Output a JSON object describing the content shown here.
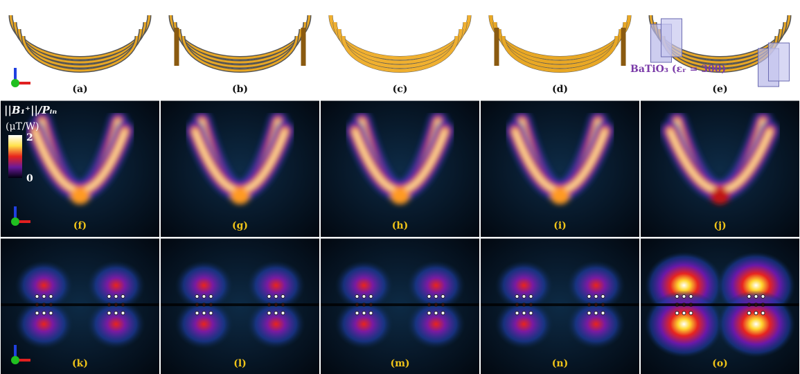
{
  "panels": [
    {
      "label": "(a)"
    },
    {
      "label": "(b)"
    },
    {
      "label": "(c)"
    },
    {
      "label": "(d)"
    },
    {
      "label": "(e)"
    },
    {
      "label": "(f)"
    },
    {
      "label": "(g)"
    },
    {
      "label": "(h)"
    },
    {
      "label": "(i)"
    },
    {
      "label": "(j)"
    },
    {
      "label": "(k)"
    },
    {
      "label": "(l)"
    },
    {
      "label": "(m)"
    },
    {
      "label": "(n)"
    },
    {
      "label": "(o)"
    }
  ],
  "colorbar": {
    "title": "||B₁⁺||/Pᵢₙ",
    "unit": "(μT/W)",
    "max": 2,
    "min": 0
  },
  "annotation": "BaTiO₃ (εᵣ = 300)"
}
